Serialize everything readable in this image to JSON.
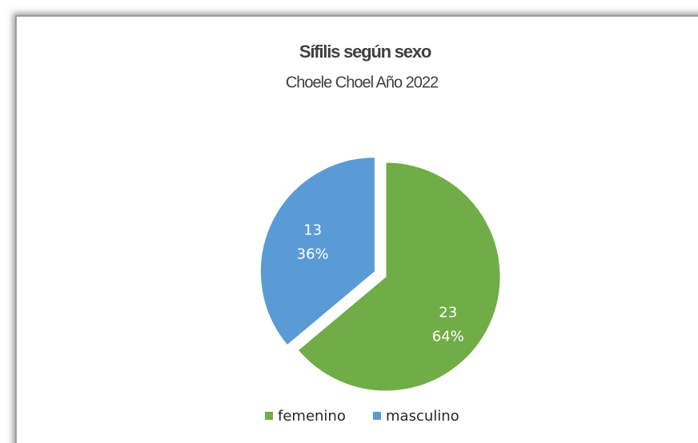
{
  "chart_data": {
    "type": "pie",
    "title": "Sífilis según sexo",
    "subtitle": "Choele Choel Año 2022",
    "categories": [
      "femenino",
      "masculino"
    ],
    "values": [
      23,
      13
    ],
    "percent_labels": [
      "64%",
      "36%"
    ],
    "colors": [
      "#70ad47",
      "#5b9bd5"
    ],
    "exploded": [
      false,
      true
    ],
    "legend": "bottom"
  }
}
